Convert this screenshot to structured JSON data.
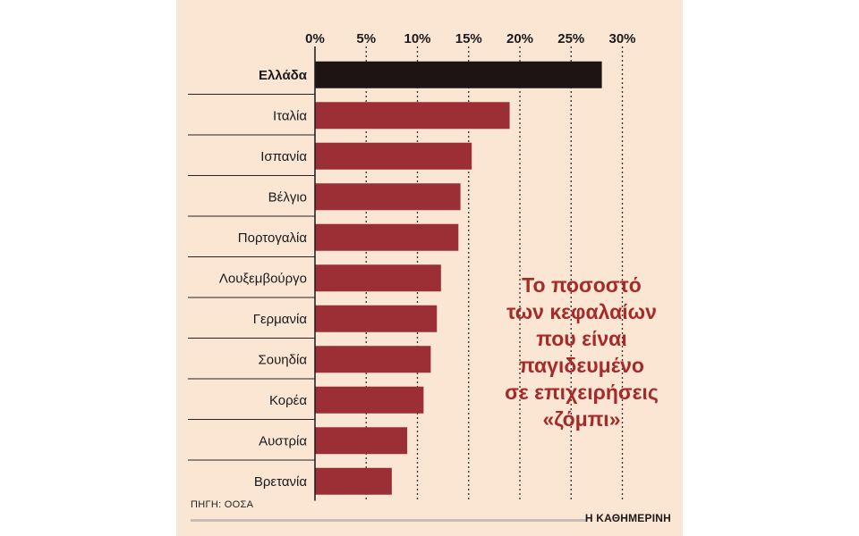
{
  "chart_data": {
    "type": "bar",
    "orientation": "horizontal",
    "categories": [
      "Ελλάδα",
      "Ιταλία",
      "Ισπανία",
      "Βέλγιο",
      "Πορτογαλία",
      "Λουξεμβούργο",
      "Γερμανία",
      "Σουηδία",
      "Κορέα",
      "Αυστρία",
      "Βρετανία"
    ],
    "values": [
      28.0,
      19.0,
      15.3,
      14.2,
      14.0,
      12.3,
      11.9,
      11.3,
      10.6,
      9.0,
      7.5
    ],
    "highlight": "Ελλάδα",
    "x_ticks": [
      "0%",
      "5%",
      "10%",
      "15%",
      "20%",
      "25%",
      "30%"
    ],
    "xlim": [
      0,
      30
    ],
    "grid": true,
    "colors": {
      "bar": "#9b2f35",
      "highlight": "#1d1414",
      "background": "#fbe6d4",
      "title": "#a52a2a"
    }
  },
  "title_lines": [
    "Το ποσοστό",
    "των κεφαλαίων",
    "που είναι",
    "παγιδευμένο",
    "σε επιχειρήσεις",
    "«ζόμπι»"
  ],
  "source": "ΠΗΓΗ: ΟΟΣΑ",
  "brand": "Η ΚΑΘΗΜΕΡΙΝΗ"
}
